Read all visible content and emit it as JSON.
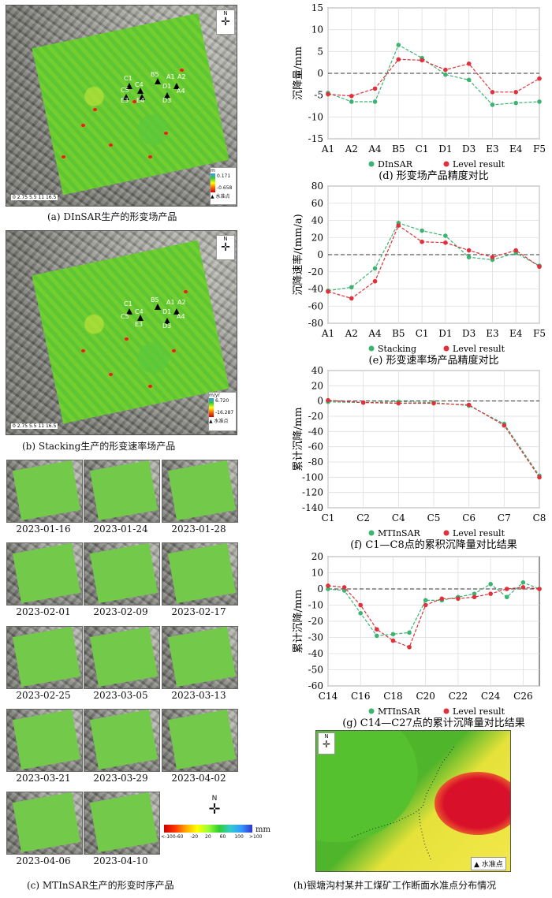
{
  "panels": {
    "a": {
      "caption": "(a) DInSAR生产的形变场产品",
      "legend_unit": "m",
      "legend_max": "0.171",
      "legend_min": "-0.658",
      "legend_note": "水准点",
      "scale": "0 2.75 5.5   11   16.5"
    },
    "b": {
      "caption": "(b) Stacking生产的形变速率场产品",
      "legend_unit": "m/yr",
      "legend_max": "6.720",
      "legend_min": "-16.287",
      "legend_note": "水准点",
      "scale": "0 2.75 5.5   11   16.5"
    },
    "c": {
      "caption": "(c) MTInSAR生产的形变时序产品",
      "dates": [
        "2023-01-16",
        "2023-01-24",
        "2023-01-28",
        "2023-02-01",
        "2023-02-09",
        "2023-02-17",
        "2023-02-25",
        "2023-03-05",
        "2023-03-13",
        "2023-03-21",
        "2023-03-29",
        "2023-04-02",
        "2023-04-06",
        "2023-04-10"
      ],
      "colorbar_unit": "mm",
      "colorbar_ticks": [
        "<-100",
        "-60",
        "-20",
        "20",
        "60",
        "100",
        ">100"
      ]
    },
    "h": {
      "caption": "(h)银塘沟村某井工煤矿工作断面水准点分布情况",
      "legend": "▲ 水准点"
    },
    "north_label": "N"
  },
  "map_points": [
    "C1",
    "C4",
    "B5",
    "A1",
    "A2",
    "D1",
    "D3",
    "A4",
    "E4",
    "C5",
    "E3"
  ],
  "chart_data": [
    {
      "id": "d",
      "type": "line",
      "title": "(d) 形变场产品精度对比",
      "ylabel": "沉降量/mm",
      "categories": [
        "A1",
        "A2",
        "A4",
        "B5",
        "C1",
        "D1",
        "D3",
        "E3",
        "E4",
        "F5"
      ],
      "ylim": [
        -15,
        15
      ],
      "yticks": [
        -15,
        -10,
        -5,
        0,
        5,
        10,
        15
      ],
      "series": [
        {
          "name": "DInSAR",
          "color": "#3cb371",
          "values": [
            -4.5,
            -6.5,
            -6.5,
            6.5,
            3.5,
            -0.3,
            -1.5,
            -7.2,
            -6.8,
            -6.5
          ]
        },
        {
          "name": "Level result",
          "color": "#e0303a",
          "values": [
            -4.8,
            -5.2,
            -3.5,
            3.2,
            3.0,
            0.8,
            2.2,
            -4.3,
            -4.3,
            -1.2
          ]
        }
      ]
    },
    {
      "id": "e",
      "type": "line",
      "title": "(e) 形变速率场产品精度对比",
      "ylabel": "沉降速率/(mm/a)",
      "categories": [
        "A1",
        "A2",
        "A4",
        "B5",
        "C1",
        "D1",
        "D3",
        "E3",
        "E4",
        "F5"
      ],
      "ylim": [
        -80,
        80
      ],
      "yticks": [
        -80,
        -60,
        -40,
        -20,
        0,
        20,
        40,
        60,
        80
      ],
      "series": [
        {
          "name": "Stacking",
          "color": "#3cb371",
          "values": [
            -42,
            -38,
            -16,
            37,
            28,
            22,
            -3,
            -6,
            2,
            -13
          ]
        },
        {
          "name": "Level result",
          "color": "#e0303a",
          "values": [
            -43,
            -51,
            -31,
            34,
            15,
            14,
            5,
            -3,
            5,
            -14
          ]
        }
      ]
    },
    {
      "id": "f",
      "type": "line",
      "title": "(f) C1—C8点的累积沉降量对比结果",
      "ylabel": "累计沉降/mm",
      "categories": [
        "C1",
        "C2",
        "C4",
        "C5",
        "C6",
        "C7",
        "C8"
      ],
      "ylim": [
        -140,
        40
      ],
      "yticks": [
        -140,
        -120,
        -100,
        -80,
        -60,
        -40,
        -20,
        0,
        20,
        40
      ],
      "series": [
        {
          "name": "MTInSAR",
          "color": "#3cb371",
          "values": [
            -1,
            -2,
            -1,
            -2,
            -6,
            -30,
            -98
          ]
        },
        {
          "name": "Level result",
          "color": "#e0303a",
          "values": [
            1,
            -2,
            -3,
            -3,
            -5,
            -32,
            -100
          ]
        }
      ]
    },
    {
      "id": "g",
      "type": "line",
      "title": "(g) C14—C27点的累计沉降量对比结果",
      "ylabel": "累计沉降/mm",
      "categories": [
        "C14",
        "C16",
        "C18",
        "C20",
        "C22",
        "C24",
        "C26"
      ],
      "x": [
        14,
        15,
        16,
        17,
        18,
        19,
        20,
        21,
        22,
        23,
        24,
        25,
        26,
        27
      ],
      "ylim": [
        -60,
        20
      ],
      "yticks": [
        -60,
        -50,
        -40,
        -30,
        -20,
        -10,
        0,
        10,
        20
      ],
      "series": [
        {
          "name": "MTInSAR",
          "color": "#3cb371",
          "values": [
            0,
            -1,
            -15,
            -29,
            -28,
            -27,
            -7,
            -7,
            -5,
            -3,
            3,
            -5,
            4,
            0
          ]
        },
        {
          "name": "Level result",
          "color": "#e0303a",
          "values": [
            2,
            1,
            -10,
            -25,
            -32,
            -36,
            -10,
            -6,
            -6,
            -5,
            -3,
            0,
            1,
            0
          ]
        }
      ]
    }
  ]
}
